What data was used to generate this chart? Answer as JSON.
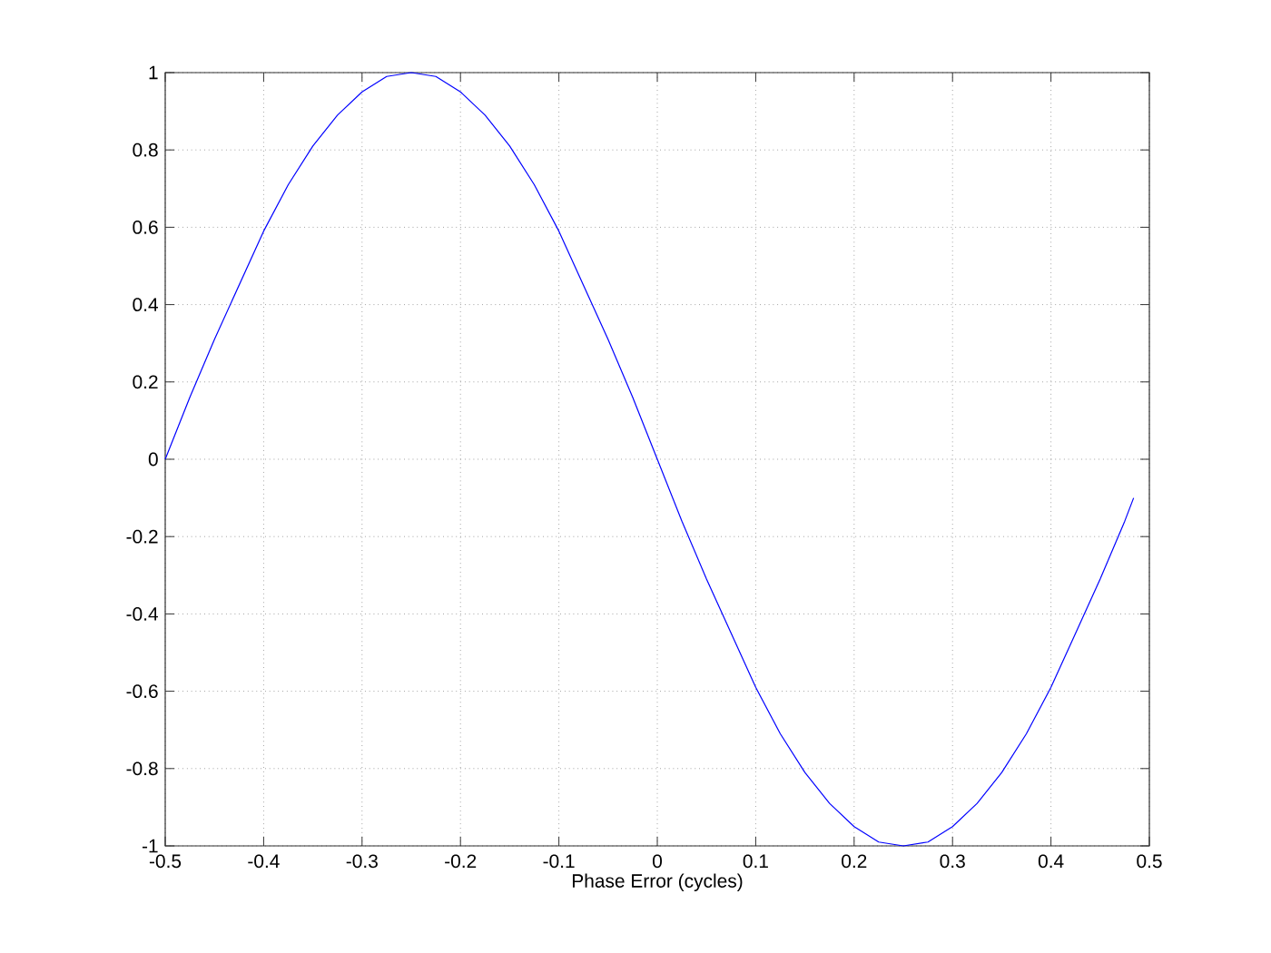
{
  "chart_data": {
    "type": "line",
    "xlabel": "Phase Error (cycles)",
    "x": [
      -0.5,
      -0.475,
      -0.45,
      -0.425,
      -0.4,
      -0.375,
      -0.35,
      -0.325,
      -0.3,
      -0.275,
      -0.25,
      -0.225,
      -0.2,
      -0.175,
      -0.15,
      -0.125,
      -0.1,
      -0.075,
      -0.05,
      -0.025,
      0,
      0.025,
      0.05,
      0.075,
      0.1,
      0.125,
      0.15,
      0.175,
      0.2,
      0.225,
      0.25,
      0.275,
      0.3,
      0.325,
      0.35,
      0.375,
      0.4,
      0.425,
      0.45,
      0.475,
      0.484
    ],
    "values": [
      0,
      0.16,
      0.31,
      0.45,
      0.59,
      0.71,
      0.81,
      0.89,
      0.95,
      0.99,
      1,
      0.99,
      0.95,
      0.89,
      0.81,
      0.71,
      0.59,
      0.45,
      0.31,
      0.16,
      0,
      -0.16,
      -0.31,
      -0.45,
      -0.59,
      -0.71,
      -0.81,
      -0.89,
      -0.95,
      -0.99,
      -1,
      -0.99,
      -0.95,
      -0.89,
      -0.81,
      -0.71,
      -0.59,
      -0.45,
      -0.31,
      -0.16,
      -0.1
    ],
    "color": "#0000ff",
    "line_style": "solid",
    "xlim": [
      -0.5,
      0.5
    ],
    "xticks": [
      -0.5,
      -0.4,
      -0.3,
      -0.2,
      -0.1,
      0,
      0.1,
      0.2,
      0.3,
      0.4,
      0.5
    ],
    "ylim": [
      -1,
      1
    ],
    "yticks": [
      -1,
      -0.8,
      -0.6,
      -0.4,
      -0.2,
      0,
      0.2,
      0.4,
      0.6,
      0.8,
      1
    ],
    "grid": true
  }
}
